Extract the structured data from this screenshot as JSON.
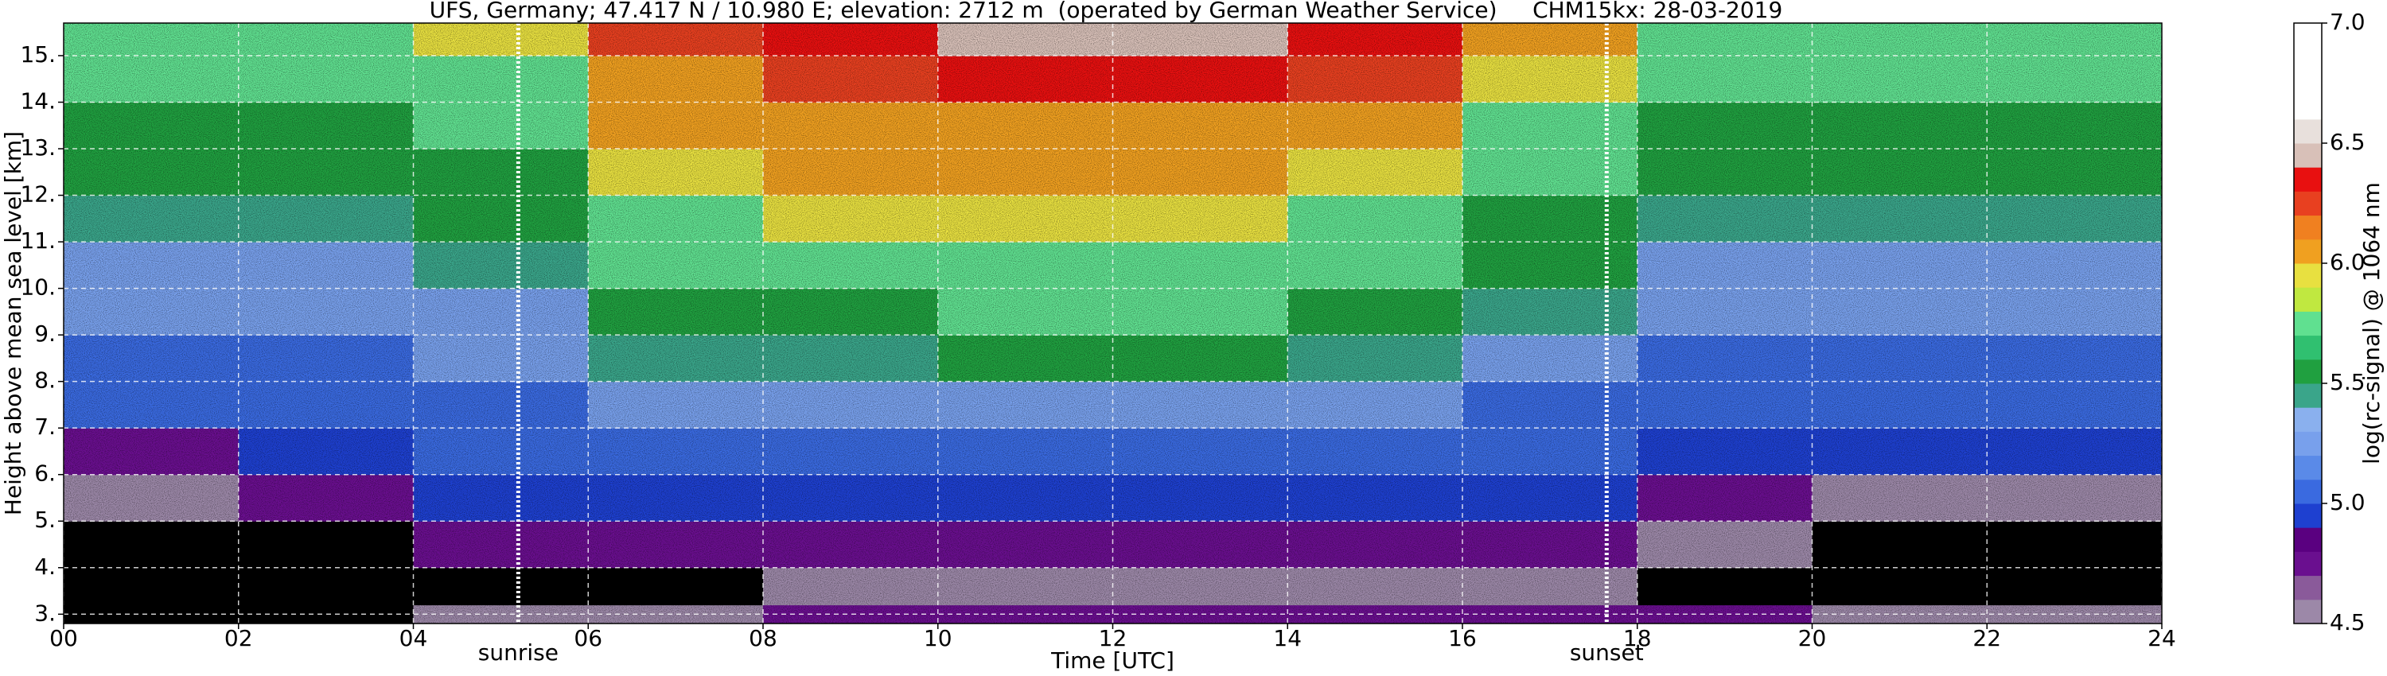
{
  "chart_data": {
    "type": "heatmap",
    "title": "UFS, Germany; 47.417 N / 10.980 E; elevation: 2712 m  (operated by German Weather Service)     CHM15kx: 28-03-2019",
    "x_label": "Time [UTC]",
    "y_label": "Height above mean sea level [km]",
    "xlim": [
      0,
      24
    ],
    "ylim": [
      2.8,
      15.7
    ],
    "xticks": [
      {
        "value": 0,
        "label": "00"
      },
      {
        "value": 2,
        "label": "02"
      },
      {
        "value": 4,
        "label": "04"
      },
      {
        "value": 6,
        "label": "06"
      },
      {
        "value": 8,
        "label": "08"
      },
      {
        "value": 10,
        "label": "10"
      },
      {
        "value": 12,
        "label": "12"
      },
      {
        "value": 14,
        "label": "14"
      },
      {
        "value": 16,
        "label": "16"
      },
      {
        "value": 18,
        "label": "18"
      },
      {
        "value": 20,
        "label": "20"
      },
      {
        "value": 22,
        "label": "22"
      },
      {
        "value": 24,
        "label": "24"
      }
    ],
    "yticks": [
      {
        "value": 3,
        "label": "3."
      },
      {
        "value": 4,
        "label": "4."
      },
      {
        "value": 5,
        "label": "5."
      },
      {
        "value": 6,
        "label": "6."
      },
      {
        "value": 7,
        "label": "7."
      },
      {
        "value": 8,
        "label": "8."
      },
      {
        "value": 9,
        "label": "9."
      },
      {
        "value": 10,
        "label": "10."
      },
      {
        "value": 11,
        "label": "11."
      },
      {
        "value": 12,
        "label": "12."
      },
      {
        "value": 13,
        "label": "13."
      },
      {
        "value": 14,
        "label": "14."
      },
      {
        "value": 15,
        "label": "15."
      }
    ],
    "grid": true,
    "x_edges": [
      0,
      2,
      4,
      6,
      8,
      10,
      12,
      14,
      16,
      18,
      20,
      22,
      24
    ],
    "y_edges": [
      2.8,
      3.2,
      4,
      5,
      6,
      7,
      8,
      9,
      10,
      11,
      12,
      13,
      14,
      15,
      15.7
    ],
    "values": [
      [
        4.4,
        4.4,
        4.6,
        4.6,
        4.7,
        4.7,
        4.7,
        4.8,
        4.8,
        4.7,
        4.6,
        4.6
      ],
      [
        4.3,
        4.3,
        4.4,
        4.4,
        4.6,
        4.6,
        4.6,
        4.6,
        4.5,
        4.4,
        4.3,
        4.3
      ],
      [
        4.3,
        4.4,
        4.7,
        4.8,
        4.8,
        4.8,
        4.8,
        4.8,
        4.7,
        4.5,
        4.4,
        4.4
      ],
      [
        4.5,
        4.7,
        4.9,
        4.9,
        4.9,
        4.9,
        4.9,
        4.9,
        4.9,
        4.7,
        4.6,
        4.6
      ],
      [
        4.8,
        4.9,
        5.0,
        5.0,
        5.0,
        5.0,
        5.0,
        5.0,
        5.0,
        4.9,
        4.9,
        4.9
      ],
      [
        5.0,
        5.0,
        5.1,
        5.2,
        5.2,
        5.2,
        5.2,
        5.2,
        5.1,
        5.0,
        5.0,
        5.0
      ],
      [
        5.1,
        5.1,
        5.2,
        5.4,
        5.4,
        5.5,
        5.5,
        5.4,
        5.3,
        5.1,
        5.1,
        5.1
      ],
      [
        5.2,
        5.2,
        5.3,
        5.6,
        5.6,
        5.7,
        5.7,
        5.6,
        5.4,
        5.2,
        5.2,
        5.2
      ],
      [
        5.3,
        5.3,
        5.4,
        5.7,
        5.8,
        5.8,
        5.8,
        5.7,
        5.5,
        5.3,
        5.3,
        5.3
      ],
      [
        5.4,
        5.4,
        5.5,
        5.8,
        5.9,
        5.9,
        5.9,
        5.8,
        5.6,
        5.4,
        5.4,
        5.4
      ],
      [
        5.5,
        5.5,
        5.6,
        5.9,
        6.0,
        6.0,
        6.0,
        5.9,
        5.7,
        5.5,
        5.5,
        5.5
      ],
      [
        5.6,
        5.6,
        5.7,
        6.0,
        6.1,
        6.1,
        6.1,
        6.0,
        5.8,
        5.6,
        5.6,
        5.6
      ],
      [
        5.7,
        5.7,
        5.8,
        6.1,
        6.2,
        6.3,
        6.3,
        6.2,
        5.9,
        5.7,
        5.7,
        5.7
      ],
      [
        5.8,
        5.8,
        5.9,
        6.2,
        6.3,
        6.4,
        6.4,
        6.3,
        6.0,
        5.8,
        5.8,
        5.8
      ]
    ],
    "colorbar": {
      "label": "log(rc-signal) @ 1064 nm",
      "clim": [
        4.5,
        7.0
      ],
      "ticks": [
        4.5,
        {
          "value": 5,
          "label": "5.0"
        },
        5.5,
        {
          "value": 6,
          "label": "6.0"
        },
        6.5,
        {
          "value": 7,
          "label": "7.0"
        }
      ],
      "under_color": "#000000",
      "colors": [
        "#9c88a8",
        "#8a5a9a",
        "#6a0f8f",
        "#5a0080",
        "#1e40d0",
        "#3a6ae0",
        "#5a8ae8",
        "#78a0ec",
        "#8ab0ee",
        "#3aa58a",
        "#20a040",
        "#30c070",
        "#60e090",
        "#c0e840",
        "#e8e040",
        "#f0a020",
        "#f08020",
        "#e84020",
        "#e81010",
        "#d8c0b8",
        "#e8e0dc",
        "#ffffff",
        "#ffffff",
        "#ffffff",
        "#ffffff"
      ]
    },
    "annotations": [
      {
        "text": "sunrise",
        "x": 5.2
      },
      {
        "text": "sunset",
        "x": 17.65
      }
    ]
  }
}
